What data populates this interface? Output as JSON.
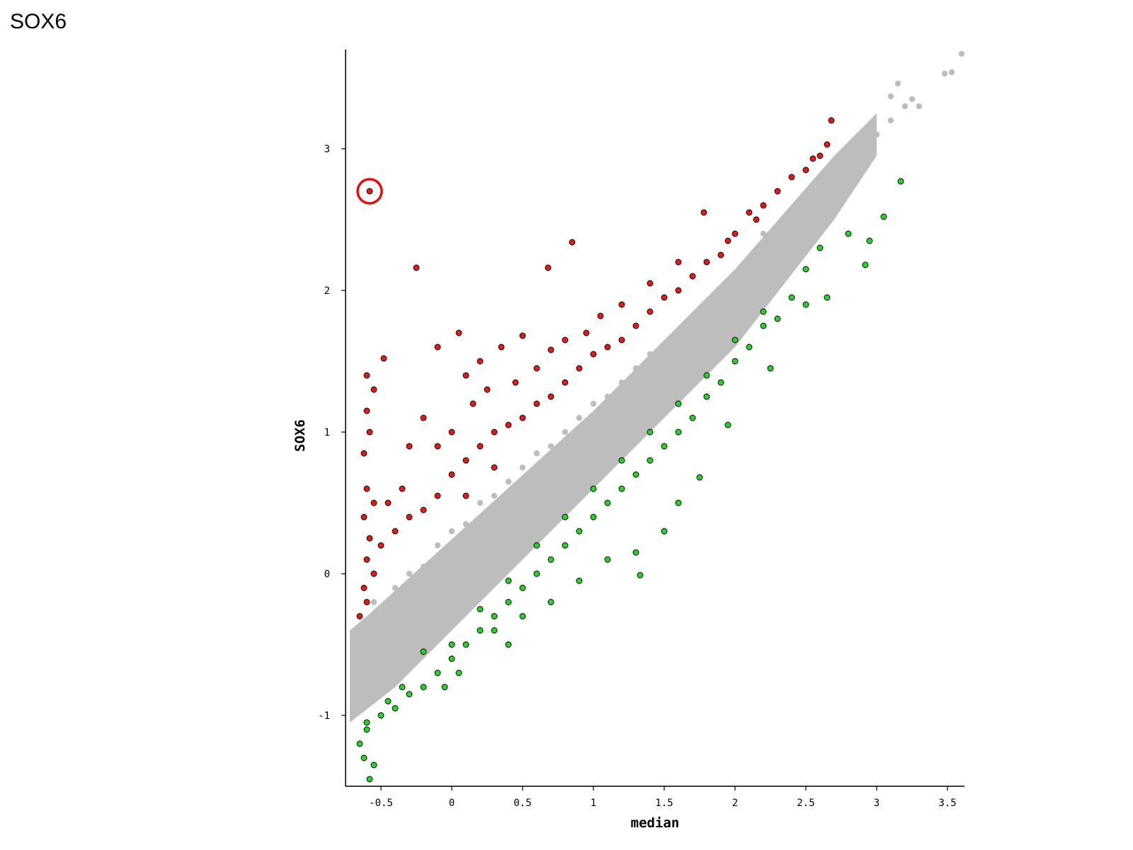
{
  "page_title": "SOX6",
  "chart_data": {
    "type": "scatter",
    "title": "",
    "xlabel": "median",
    "ylabel": "SOX6",
    "xlim": [
      -0.75,
      3.62
    ],
    "ylim": [
      -1.5,
      3.7
    ],
    "x_ticks": [
      -0.5,
      0,
      0.5,
      1,
      1.5,
      2,
      2.5,
      3,
      3.5
    ],
    "x_tick_labels": [
      "-0.5",
      "0",
      "0.5",
      "1",
      "1.5",
      "2",
      "2.5",
      "3",
      "3.5"
    ],
    "y_ticks": [
      -1,
      0,
      1,
      2,
      3
    ],
    "y_tick_labels": [
      "-1",
      "0",
      "1",
      "2",
      "3"
    ],
    "grid": false,
    "legend": "none",
    "highlight": {
      "x": -0.58,
      "y": 2.7,
      "marker": "ring",
      "color": "#e01010"
    },
    "series": [
      {
        "group": "not-significant",
        "color": "#bdbdbd",
        "points": [
          [
            -0.7,
            -0.95
          ],
          [
            -0.68,
            -0.7
          ],
          [
            -0.66,
            -0.45
          ],
          [
            -0.6,
            -0.6
          ],
          [
            -0.55,
            -0.2
          ],
          [
            -0.5,
            -0.5
          ],
          [
            -0.4,
            -0.1
          ],
          [
            -0.3,
            0.0
          ],
          [
            -0.2,
            0.05
          ],
          [
            -0.1,
            0.2
          ],
          [
            0.0,
            0.3
          ],
          [
            0.1,
            0.35
          ],
          [
            0.2,
            0.5
          ],
          [
            0.3,
            0.55
          ],
          [
            0.4,
            0.65
          ],
          [
            0.5,
            0.75
          ],
          [
            0.6,
            0.85
          ],
          [
            0.7,
            0.9
          ],
          [
            0.8,
            1.0
          ],
          [
            0.9,
            1.1
          ],
          [
            1.0,
            1.2
          ],
          [
            1.1,
            1.25
          ],
          [
            1.2,
            1.35
          ],
          [
            1.3,
            1.45
          ],
          [
            1.4,
            1.55
          ],
          [
            1.5,
            1.6
          ],
          [
            1.6,
            1.7
          ],
          [
            1.7,
            1.8
          ],
          [
            1.8,
            1.9
          ],
          [
            1.9,
            2.0
          ],
          [
            2.0,
            2.05
          ],
          [
            2.1,
            2.15
          ],
          [
            2.2,
            2.25
          ],
          [
            2.3,
            2.35
          ],
          [
            2.4,
            2.45
          ],
          [
            2.5,
            2.55
          ],
          [
            2.6,
            2.7
          ],
          [
            2.7,
            2.75
          ],
          [
            2.8,
            2.85
          ],
          [
            2.9,
            3.0
          ],
          [
            3.0,
            3.1
          ],
          [
            3.1,
            3.2
          ],
          [
            3.2,
            3.3
          ],
          [
            3.25,
            3.35
          ],
          [
            3.3,
            3.3
          ],
          [
            3.48,
            3.53
          ],
          [
            3.53,
            3.54
          ],
          [
            3.6,
            3.67
          ],
          [
            3.15,
            3.46
          ],
          [
            3.1,
            3.37
          ],
          [
            2.2,
            2.4
          ],
          [
            1.5,
            1.55
          ]
        ]
      },
      {
        "group": "up",
        "color": "#dd1c1c",
        "points": [
          [
            -0.58,
            2.7
          ],
          [
            -0.25,
            2.16
          ],
          [
            0.68,
            2.16
          ],
          [
            0.85,
            2.34
          ],
          [
            1.78,
            2.55
          ],
          [
            2.68,
            3.2
          ],
          [
            2.65,
            3.03
          ],
          [
            2.55,
            2.93
          ],
          [
            2.3,
            2.7
          ],
          [
            2.15,
            2.5
          ],
          [
            1.95,
            2.35
          ],
          [
            1.6,
            2.2
          ],
          [
            1.4,
            2.05
          ],
          [
            1.2,
            1.9
          ],
          [
            1.05,
            1.82
          ],
          [
            0.95,
            1.7
          ],
          [
            0.8,
            1.65
          ],
          [
            0.7,
            1.58
          ],
          [
            0.5,
            1.68
          ],
          [
            0.35,
            1.6
          ],
          [
            0.2,
            1.5
          ],
          [
            0.1,
            1.4
          ],
          [
            0.05,
            1.7
          ],
          [
            -0.1,
            1.6
          ],
          [
            -0.48,
            1.52
          ],
          [
            -0.6,
            1.4
          ],
          [
            -0.55,
            1.3
          ],
          [
            -0.6,
            1.15
          ],
          [
            -0.58,
            1.0
          ],
          [
            -0.62,
            0.85
          ],
          [
            -0.6,
            0.6
          ],
          [
            -0.55,
            0.5
          ],
          [
            -0.62,
            0.4
          ],
          [
            -0.58,
            0.25
          ],
          [
            -0.6,
            0.1
          ],
          [
            -0.55,
            0.0
          ],
          [
            -0.62,
            -0.1
          ],
          [
            -0.6,
            -0.2
          ],
          [
            -0.65,
            -0.3
          ],
          [
            -0.5,
            0.2
          ],
          [
            -0.4,
            0.3
          ],
          [
            -0.3,
            0.4
          ],
          [
            -0.2,
            0.45
          ],
          [
            -0.1,
            0.55
          ],
          [
            0.0,
            0.7
          ],
          [
            0.1,
            0.8
          ],
          [
            0.2,
            0.9
          ],
          [
            0.3,
            1.0
          ],
          [
            0.4,
            1.05
          ],
          [
            0.5,
            1.1
          ],
          [
            0.6,
            1.2
          ],
          [
            0.7,
            1.25
          ],
          [
            0.8,
            1.35
          ],
          [
            0.9,
            1.45
          ],
          [
            1.0,
            1.55
          ],
          [
            1.1,
            1.6
          ],
          [
            1.2,
            1.65
          ],
          [
            1.3,
            1.75
          ],
          [
            1.4,
            1.85
          ],
          [
            1.5,
            1.95
          ],
          [
            1.6,
            2.0
          ],
          [
            1.7,
            2.1
          ],
          [
            1.8,
            2.2
          ],
          [
            1.9,
            2.25
          ],
          [
            2.0,
            2.4
          ],
          [
            2.1,
            2.55
          ],
          [
            2.2,
            2.6
          ],
          [
            2.4,
            2.8
          ],
          [
            2.5,
            2.85
          ],
          [
            2.6,
            2.95
          ],
          [
            -0.3,
            0.9
          ],
          [
            -0.2,
            1.1
          ],
          [
            -0.1,
            0.9
          ],
          [
            0.0,
            1.0
          ],
          [
            0.15,
            1.2
          ],
          [
            0.25,
            1.3
          ],
          [
            0.45,
            1.35
          ],
          [
            0.6,
            1.45
          ],
          [
            -0.45,
            0.5
          ],
          [
            -0.35,
            0.6
          ],
          [
            0.3,
            0.75
          ],
          [
            0.1,
            0.55
          ]
        ]
      },
      {
        "group": "down",
        "color": "#2fce2f",
        "points": [
          [
            3.17,
            2.77
          ],
          [
            3.05,
            2.52
          ],
          [
            2.92,
            2.18
          ],
          [
            2.65,
            1.95
          ],
          [
            2.6,
            2.3
          ],
          [
            2.5,
            2.15
          ],
          [
            2.4,
            1.95
          ],
          [
            2.3,
            1.8
          ],
          [
            2.2,
            1.75
          ],
          [
            2.1,
            1.6
          ],
          [
            2.0,
            1.5
          ],
          [
            1.9,
            1.35
          ],
          [
            1.8,
            1.25
          ],
          [
            1.7,
            1.1
          ],
          [
            1.6,
            1.0
          ],
          [
            1.5,
            0.9
          ],
          [
            1.4,
            0.8
          ],
          [
            1.3,
            0.7
          ],
          [
            1.2,
            0.6
          ],
          [
            1.1,
            0.5
          ],
          [
            1.0,
            0.4
          ],
          [
            0.9,
            0.3
          ],
          [
            0.8,
            0.2
          ],
          [
            0.7,
            0.1
          ],
          [
            0.6,
            0.0
          ],
          [
            0.5,
            -0.1
          ],
          [
            0.4,
            -0.2
          ],
          [
            0.3,
            -0.3
          ],
          [
            0.2,
            -0.4
          ],
          [
            0.1,
            -0.5
          ],
          [
            0.0,
            -0.6
          ],
          [
            -0.1,
            -0.7
          ],
          [
            -0.2,
            -0.8
          ],
          [
            -0.3,
            -0.85
          ],
          [
            -0.4,
            -0.95
          ],
          [
            -0.5,
            -1.0
          ],
          [
            -0.6,
            -1.1
          ],
          [
            -0.65,
            -1.2
          ],
          [
            -0.62,
            -1.3
          ],
          [
            -0.55,
            -1.35
          ],
          [
            -0.58,
            -1.45
          ],
          [
            -0.6,
            -1.05
          ],
          [
            -0.45,
            -0.9
          ],
          [
            -0.35,
            -0.8
          ],
          [
            -0.2,
            -0.55
          ],
          [
            0.0,
            -0.5
          ],
          [
            0.2,
            -0.25
          ],
          [
            0.4,
            -0.05
          ],
          [
            0.6,
            0.2
          ],
          [
            0.8,
            0.4
          ],
          [
            1.0,
            0.6
          ],
          [
            1.2,
            0.8
          ],
          [
            1.4,
            1.0
          ],
          [
            1.6,
            1.2
          ],
          [
            1.8,
            1.4
          ],
          [
            2.0,
            1.65
          ],
          [
            2.2,
            1.85
          ],
          [
            1.33,
            -0.01
          ],
          [
            1.1,
            0.1
          ],
          [
            0.9,
            -0.05
          ],
          [
            0.7,
            -0.2
          ],
          [
            0.5,
            -0.3
          ],
          [
            0.3,
            -0.4
          ],
          [
            0.05,
            -0.7
          ],
          [
            -0.05,
            -0.8
          ],
          [
            0.4,
            -0.5
          ],
          [
            1.5,
            0.3
          ],
          [
            1.75,
            0.68
          ],
          [
            1.95,
            1.05
          ],
          [
            1.6,
            0.5
          ],
          [
            1.3,
            0.15
          ],
          [
            2.25,
            1.45
          ],
          [
            2.5,
            1.9
          ],
          [
            2.8,
            2.4
          ],
          [
            2.95,
            2.35
          ]
        ]
      }
    ]
  }
}
